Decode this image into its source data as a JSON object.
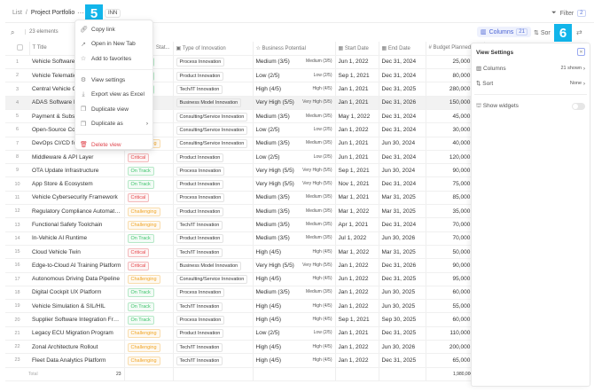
{
  "breadcrumb": {
    "root": "List",
    "separator": "/",
    "current": "Project Portfolio"
  },
  "tag": "INN",
  "annotations": {
    "menu_badge": "5",
    "panel_badge": "6"
  },
  "filter": {
    "label": "Filter",
    "count": "2"
  },
  "toolbar": {
    "elements": "23 elements",
    "columns_label": "Columns",
    "columns_count": "21",
    "sort_label": "Sor"
  },
  "columns": {
    "title": "Title",
    "status": "Stat...",
    "type": "Type of Innovation",
    "potential": "Business Potential",
    "start": "Start Date",
    "end": "End Date",
    "budget": "Budget Planned"
  },
  "rows": [
    {
      "n": "1",
      "title": "Vehicle Software Platform",
      "status": "On Track",
      "type": "Process Innovation",
      "potential": "Medium (3/5)",
      "start": "Jun 1, 2022",
      "end": "Dec 31, 2024",
      "budget": "25,000,000"
    },
    {
      "n": "2",
      "title": "Vehicle Telematics",
      "status": "On Track",
      "type": "Product Innovation",
      "potential": "Low (2/5)",
      "start": "Sep 1, 2021",
      "end": "Dec 31, 2024",
      "budget": "80,000,000"
    },
    {
      "n": "3",
      "title": "Central Vehicle OS",
      "status": "On Track",
      "type": "Tech/IT Innovation",
      "potential": "High (4/5)",
      "start": "Jan 1, 2021",
      "end": "Dec 31, 2025",
      "budget": "280,000,000"
    },
    {
      "n": "4",
      "title": "ADAS Software Platform",
      "status": "",
      "type": "Business Model Innovation",
      "potential": "Very High (5/5)",
      "start": "Jan 1, 2021",
      "end": "Dec 31, 2026",
      "budget": "150,000,000"
    },
    {
      "n": "5",
      "title": "Payment & Subscription",
      "status": "",
      "type": "Consulting/Service Innovation",
      "potential": "Medium (3/5)",
      "start": "May 1, 2022",
      "end": "Dec 31, 2024",
      "budget": "45,000,000"
    },
    {
      "n": "6",
      "title": "Open-Source Compliance",
      "status": "",
      "type": "Consulting/Service Innovation",
      "potential": "Low (2/5)",
      "start": "Jan 1, 2022",
      "end": "Dec 31, 2024",
      "budget": "30,000,000"
    },
    {
      "n": "7",
      "title": "DevOps CI/CD for Vehicles",
      "status": "Challenging",
      "type": "Consulting/Service Innovation",
      "potential": "Medium (3/5)",
      "start": "Jun 1, 2021",
      "end": "Jun 30, 2024",
      "budget": "40,000,000"
    },
    {
      "n": "8",
      "title": "Middleware & API Layer",
      "status": "Critical",
      "type": "Product Innovation",
      "potential": "Low (2/5)",
      "start": "Jun 1, 2021",
      "end": "Dec 31, 2024",
      "budget": "120,000,000"
    },
    {
      "n": "9",
      "title": "OTA Update Infrastructure",
      "status": "On Track",
      "type": "Process Innovation",
      "potential": "Very High (5/5)",
      "start": "Sep 1, 2021",
      "end": "Jun 30, 2024",
      "budget": "90,000,000"
    },
    {
      "n": "10",
      "title": "App Store & Ecosystem",
      "status": "On Track",
      "type": "Product Innovation",
      "potential": "Very High (5/5)",
      "start": "Nov 1, 2021",
      "end": "Dec 31, 2024",
      "budget": "75,000,000"
    },
    {
      "n": "11",
      "title": "Vehicle Cybersecurity Framework",
      "status": "Critical",
      "type": "Process Innovation",
      "potential": "Medium (3/5)",
      "start": "Mar 1, 2021",
      "end": "Mar 31, 2025",
      "budget": "85,000,000"
    },
    {
      "n": "12",
      "title": "Regulatory Compliance Automation",
      "status": "Challenging",
      "type": "Product Innovation",
      "potential": "Medium (3/5)",
      "start": "Mar 1, 2022",
      "end": "Mar 31, 2025",
      "budget": "35,000,000"
    },
    {
      "n": "13",
      "title": "Functional Safety Toolchain",
      "status": "Challenging",
      "type": "Tech/IT Innovation",
      "potential": "Medium (3/5)",
      "start": "Apr 1, 2021",
      "end": "Dec 31, 2024",
      "budget": "70,000,000"
    },
    {
      "n": "14",
      "title": "In-Vehicle AI Runtime",
      "status": "On Track",
      "type": "Product Innovation",
      "potential": "Medium (3/5)",
      "start": "Jul 1, 2022",
      "end": "Jun 30, 2026",
      "budget": "70,000,000"
    },
    {
      "n": "15",
      "title": "Cloud Vehicle Twin",
      "status": "Critical",
      "type": "Tech/IT Innovation",
      "potential": "High (4/5)",
      "start": "Mar 1, 2022",
      "end": "Mar 31, 2025",
      "budget": "50,000,000"
    },
    {
      "n": "16",
      "title": "Edge-to-Cloud AI Training Platform",
      "status": "Critical",
      "type": "Business Model Innovation",
      "potential": "Very High (5/5)",
      "start": "Jan 1, 2022",
      "end": "Dec 31, 2026",
      "budget": "90,000,000"
    },
    {
      "n": "17",
      "title": "Autonomous Driving Data Pipeline",
      "status": "Challenging",
      "type": "Consulting/Service Innovation",
      "potential": "High (4/5)",
      "start": "Jun 1, 2022",
      "end": "Dec 31, 2025",
      "budget": "95,000,000"
    },
    {
      "n": "18",
      "title": "Digital Cockpit UX Platform",
      "status": "On Track",
      "type": "Process Innovation",
      "potential": "Medium (3/5)",
      "start": "Jan 1, 2022",
      "end": "Jun 30, 2025",
      "budget": "60,000,000"
    },
    {
      "n": "19",
      "title": "Vehicle Simulation & SIL/HIL",
      "status": "On Track",
      "type": "Tech/IT Innovation",
      "potential": "High (4/5)",
      "start": "Jan 1, 2022",
      "end": "Jun 30, 2025",
      "budget": "55,000,000"
    },
    {
      "n": "20",
      "title": "Supplier Software Integration Fram...",
      "status": "On Track",
      "type": "Process Innovation",
      "potential": "High (4/5)",
      "start": "Sep 1, 2021",
      "end": "Sep 30, 2025",
      "budget": "60,000,000"
    },
    {
      "n": "21",
      "title": "Legacy ECU Migration Program",
      "status": "Challenging",
      "type": "Product Innovation",
      "potential": "Low (2/5)",
      "start": "Jan 1, 2021",
      "end": "Dec 31, 2025",
      "budget": "110,000,000"
    },
    {
      "n": "22",
      "title": "Zonal Architecture Rollout",
      "status": "Challenging",
      "type": "Tech/IT Innovation",
      "potential": "High (4/5)",
      "start": "Jan 1, 2022",
      "end": "Jun 30, 2026",
      "budget": "200,000,000"
    },
    {
      "n": "23",
      "title": "Fleet Data Analytics Platform",
      "status": "Challenging",
      "type": "Tech/IT Innovation",
      "potential": "High (4/5)",
      "start": "Jan 1, 2022",
      "end": "Dec 31, 2025",
      "budget": "65,000,000"
    }
  ],
  "total": {
    "label": "Total",
    "count": "23",
    "budget": "1,980,000,000"
  },
  "status_colors": {
    "On Track": "#3cc36a",
    "Critical": "#e5484d",
    "Challenging": "#f0a526"
  },
  "menu": {
    "items": [
      {
        "label": "Copy link",
        "icon": "link-icon"
      },
      {
        "label": "Open in New Tab",
        "icon": "external-link-icon"
      },
      {
        "label": "Add to favorites",
        "icon": "star-icon"
      },
      {
        "label": "View settings",
        "icon": "gear-icon"
      },
      {
        "label": "Export view as Excel",
        "icon": "download-icon"
      },
      {
        "label": "Duplicate view",
        "icon": "copy-icon"
      },
      {
        "label": "Duplicate as",
        "icon": "copy-icon"
      },
      {
        "label": "Delete view",
        "icon": "trash-icon"
      }
    ]
  },
  "panel": {
    "title": "View Settings",
    "columns_label": "Columns",
    "columns_value": "21 shown",
    "sort_label": "Sort",
    "sort_value": "None",
    "widgets_label": "Show widgets",
    "widgets_on": false
  }
}
